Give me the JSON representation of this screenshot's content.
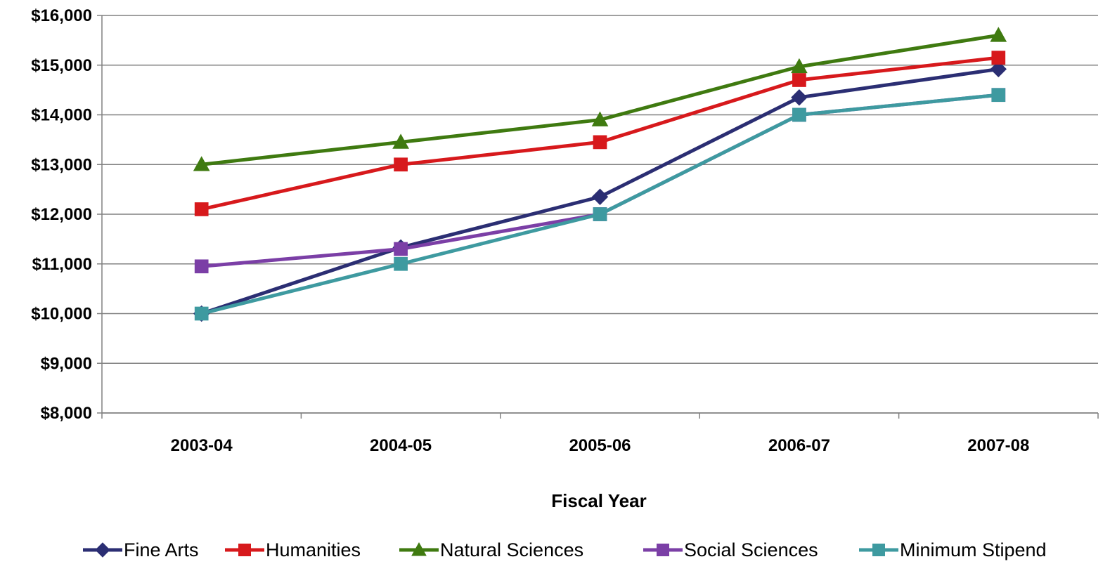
{
  "chart_data": {
    "type": "line",
    "title": "",
    "xlabel": "Fiscal Year",
    "ylabel": "",
    "categories": [
      "2003-04",
      "2004-05",
      "2005-06",
      "2006-07",
      "2007-08"
    ],
    "ylim": [
      8000,
      16000
    ],
    "y_ticks": [
      8000,
      9000,
      10000,
      11000,
      12000,
      13000,
      14000,
      15000,
      16000
    ],
    "y_tick_labels": [
      "$8,000",
      "$9,000",
      "$10,000",
      "$11,000",
      "$12,000",
      "$13,000",
      "$14,000",
      "$15,000",
      "$16,000"
    ],
    "grid": true,
    "legend_position": "bottom",
    "series": [
      {
        "name": "Fine Arts",
        "color": "#2B2E73",
        "marker": "diamond",
        "values": [
          10000,
          11330,
          12350,
          14350,
          14920
        ]
      },
      {
        "name": "Humanities",
        "color": "#D7191C",
        "marker": "square",
        "values": [
          12100,
          13000,
          13450,
          14700,
          15150
        ]
      },
      {
        "name": "Natural Sciences",
        "color": "#3F7A10",
        "marker": "triangle",
        "values": [
          13000,
          13450,
          13900,
          14970,
          15600
        ]
      },
      {
        "name": "Social Sciences",
        "color": "#7B3FA6",
        "marker": "square",
        "values": [
          10950,
          11300,
          12000,
          14000,
          14400
        ]
      },
      {
        "name": "Minimum Stipend",
        "color": "#3E9AA0",
        "marker": "square",
        "values": [
          10000,
          11000,
          12000,
          14000,
          14400
        ]
      }
    ]
  }
}
